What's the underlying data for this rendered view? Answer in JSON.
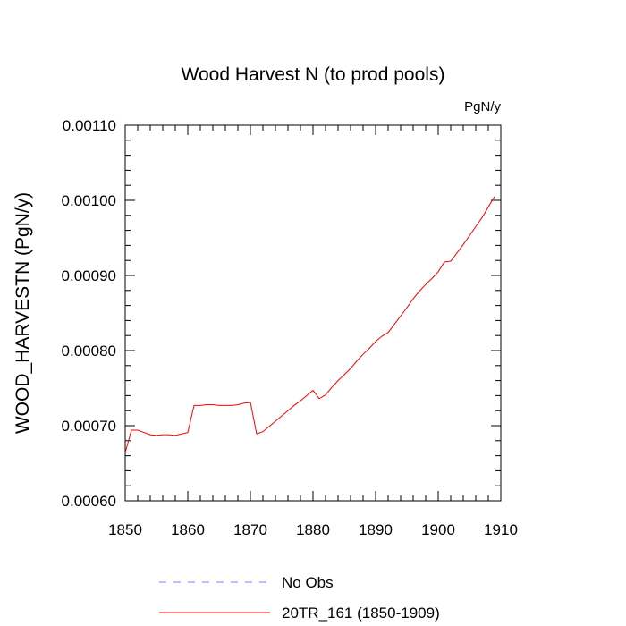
{
  "chart_data": {
    "type": "line",
    "title": "Wood Harvest N (to prod pools)",
    "units_label": "PgN/y",
    "ylabel": "WOOD_HARVESTN  (PgN/y)",
    "xlabel": "",
    "xlim": [
      1850,
      1910
    ],
    "ylim": [
      0.0006,
      0.0011
    ],
    "x_ticks": [
      1850,
      1860,
      1870,
      1880,
      1890,
      1900,
      1910
    ],
    "y_ticks": [
      0.0006,
      0.0007,
      0.0008,
      0.0009,
      0.001,
      0.0011
    ],
    "x_tick_labels": [
      "1850",
      "1860",
      "1870",
      "1880",
      "1890",
      "1900",
      "1910"
    ],
    "y_tick_labels": [
      "0.00060",
      "0.00070",
      "0.00080",
      "0.00090",
      "0.00100",
      "0.00110"
    ],
    "grid": false,
    "legend_position": "bottom",
    "series": [
      {
        "name": "No Obs",
        "color": "#7b7bff",
        "style": "dashed",
        "x": [],
        "values": []
      },
      {
        "name": "20TR_161 (1850-1909)",
        "color": "#ff0000",
        "style": "solid",
        "x": [
          1850,
          1851,
          1852,
          1853,
          1854,
          1855,
          1856,
          1857,
          1858,
          1859,
          1860,
          1861,
          1862,
          1863,
          1864,
          1865,
          1866,
          1867,
          1868,
          1869,
          1870,
          1871,
          1872,
          1873,
          1874,
          1875,
          1876,
          1877,
          1878,
          1879,
          1880,
          1881,
          1882,
          1883,
          1884,
          1885,
          1886,
          1887,
          1888,
          1889,
          1890,
          1891,
          1892,
          1893,
          1894,
          1895,
          1896,
          1897,
          1898,
          1899,
          1900,
          1901,
          1902,
          1903,
          1904,
          1905,
          1906,
          1907,
          1908,
          1909
        ],
        "values": [
          0.000664,
          0.000694,
          0.000694,
          0.000691,
          0.000688,
          0.000687,
          0.000688,
          0.000688,
          0.000687,
          0.000689,
          0.000691,
          0.000727,
          0.000727,
          0.000728,
          0.000728,
          0.000727,
          0.000727,
          0.000727,
          0.000728,
          0.00073,
          0.000731,
          0.000689,
          0.000692,
          0.000699,
          0.000706,
          0.000713,
          0.00072,
          0.000727,
          0.000733,
          0.00074,
          0.000747,
          0.000736,
          0.000741,
          0.000751,
          0.00076,
          0.000768,
          0.000776,
          0.000786,
          0.000795,
          0.000803,
          0.000812,
          0.000819,
          0.000824,
          0.000835,
          0.000846,
          0.000857,
          0.000869,
          0.000879,
          0.000888,
          0.000896,
          0.000905,
          0.000918,
          0.000919,
          0.00093,
          0.000941,
          0.000953,
          0.000965,
          0.000977,
          0.000991,
          0.001005
        ]
      }
    ]
  }
}
